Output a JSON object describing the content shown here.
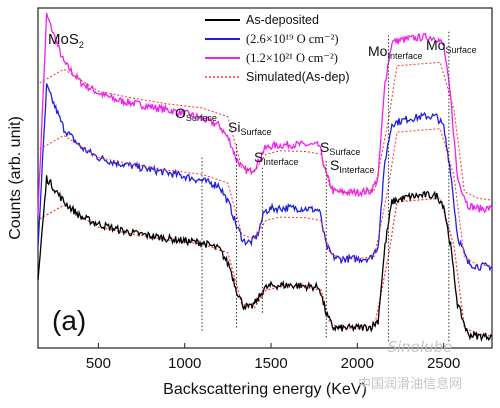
{
  "chart_data": {
    "type": "line",
    "title": "",
    "sample_label": "MoS",
    "sample_label_sub": "2",
    "panel_label": "(a)",
    "xlabel": "Backscattering energy (KeV)",
    "ylabel": "Counts (arb. unit)",
    "xlim": [
      150,
      2780
    ],
    "ylim": [
      0,
      1
    ],
    "xticks": [
      500,
      1000,
      1500,
      2000,
      2500
    ],
    "grid": false,
    "legend_position": "top-center",
    "legend": [
      {
        "name": "As-deposited",
        "color": "#000000",
        "style": "solid"
      },
      {
        "name": "(2.6×10¹⁹ O cm⁻²)",
        "color": "#1f1fe0",
        "style": "solid"
      },
      {
        "name": "(1.2×10²¹ O cm⁻²)",
        "color": "#f020f0",
        "style": "solid"
      },
      {
        "name": "Simulated(As-dep)",
        "color": "#ff3030",
        "style": "dotted"
      }
    ],
    "annotations": [
      {
        "main": "O",
        "sub": "Surface",
        "x": 1100
      },
      {
        "main": "Si",
        "sub": "Surface",
        "x": 1300
      },
      {
        "main": "S",
        "sub": "Interface",
        "x": 1450
      },
      {
        "main": "S",
        "sub": "Surface",
        "x": 1820
      },
      {
        "main": "S",
        "sub": "Interface",
        "x": 1860
      },
      {
        "main": "Mo",
        "sub": "Interface",
        "x": 2180
      },
      {
        "main": "Mo",
        "sub": "Surface",
        "x": 2530
      }
    ],
    "series": [
      {
        "name": "As-deposited",
        "color": "#000000",
        "x": [
          150,
          200,
          300,
          400,
          500,
          600,
          700,
          800,
          900,
          1000,
          1100,
          1200,
          1260,
          1300,
          1340,
          1380,
          1420,
          1460,
          1500,
          1600,
          1700,
          1780,
          1820,
          1860,
          1900,
          2000,
          2080,
          2120,
          2160,
          2200,
          2300,
          2400,
          2460,
          2500,
          2540,
          2580,
          2640,
          2700,
          2780
        ],
        "y": [
          0.2,
          0.5,
          0.43,
          0.385,
          0.365,
          0.35,
          0.338,
          0.33,
          0.322,
          0.315,
          0.31,
          0.292,
          0.24,
          0.17,
          0.125,
          0.118,
          0.14,
          0.175,
          0.183,
          0.185,
          0.182,
          0.178,
          0.1,
          0.06,
          0.058,
          0.06,
          0.062,
          0.08,
          0.3,
          0.43,
          0.445,
          0.45,
          0.448,
          0.42,
          0.3,
          0.13,
          0.04,
          0.035,
          0.035
        ]
      },
      {
        "name": "(2.6×10¹⁹ O cm⁻²)",
        "color": "#1f1fe0",
        "x": [
          150,
          200,
          300,
          400,
          500,
          600,
          700,
          800,
          900,
          1000,
          1100,
          1200,
          1260,
          1300,
          1340,
          1380,
          1420,
          1460,
          1500,
          1600,
          1700,
          1780,
          1820,
          1860,
          1900,
          2000,
          2080,
          2120,
          2160,
          2200,
          2300,
          2400,
          2460,
          2500,
          2540,
          2580,
          2640,
          2700,
          2780
        ],
        "y": [
          0.3,
          0.77,
          0.645,
          0.59,
          0.56,
          0.545,
          0.535,
          0.525,
          0.515,
          0.505,
          0.492,
          0.478,
          0.42,
          0.36,
          0.315,
          0.31,
          0.33,
          0.4,
          0.41,
          0.412,
          0.41,
          0.405,
          0.3,
          0.268,
          0.262,
          0.262,
          0.265,
          0.3,
          0.55,
          0.66,
          0.675,
          0.682,
          0.68,
          0.65,
          0.52,
          0.33,
          0.25,
          0.24,
          0.24
        ]
      },
      {
        "name": "(1.2×10²¹ O cm⁻²)",
        "color": "#f020f0",
        "x": [
          150,
          200,
          300,
          400,
          500,
          600,
          700,
          800,
          900,
          1000,
          1100,
          1200,
          1260,
          1300,
          1340,
          1380,
          1420,
          1460,
          1500,
          1600,
          1700,
          1780,
          1820,
          1860,
          1900,
          2000,
          2080,
          2120,
          2160,
          2200,
          2300,
          2400,
          2460,
          2500,
          2540,
          2580,
          2640,
          2700,
          2780
        ],
        "y": [
          0.4,
          0.98,
          0.84,
          0.78,
          0.75,
          0.73,
          0.72,
          0.71,
          0.7,
          0.69,
          0.675,
          0.655,
          0.61,
          0.555,
          0.525,
          0.52,
          0.54,
          0.585,
          0.594,
          0.598,
          0.598,
          0.595,
          0.51,
          0.462,
          0.458,
          0.458,
          0.462,
          0.5,
          0.78,
          0.9,
          0.91,
          0.915,
          0.912,
          0.89,
          0.74,
          0.5,
          0.42,
          0.41,
          0.41
        ]
      },
      {
        "name": "Simulated(As-dep)",
        "color": "#ff3030",
        "style": "dotted",
        "x": [
          160,
          300,
          500,
          700,
          900,
          1100,
          1250,
          1330,
          1400,
          1470,
          1550,
          1700,
          1790,
          1840,
          1900,
          2000,
          2100,
          2180,
          2230,
          2350,
          2480,
          2560,
          2620,
          2700,
          2780
        ],
        "y": [
          0.38,
          0.42,
          0.355,
          0.335,
          0.318,
          0.306,
          0.28,
          0.13,
          0.115,
          0.17,
          0.18,
          0.178,
          0.17,
          0.075,
          0.058,
          0.058,
          0.065,
          0.27,
          0.43,
          0.435,
          0.44,
          0.3,
          0.06,
          0.04,
          0.035
        ]
      }
    ]
  },
  "watermark": {
    "line1": "Sinolube",
    "line2": "中国润滑油信息网"
  }
}
